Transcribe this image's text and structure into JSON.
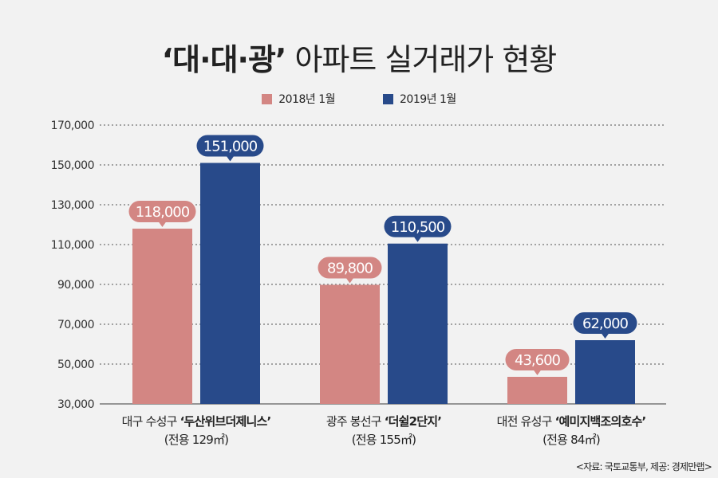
{
  "title": {
    "bold": "‘대·대·광’",
    "rest": " 아파트 실거래가 현황"
  },
  "source": "<자료: 국토교통부, 제공: 경제만랩>",
  "colors": {
    "2018": "#d38683",
    "2019": "#284a8a",
    "background": "#f2f2f2"
  },
  "chart_data": {
    "type": "bar",
    "title": "‘대·대·광’ 아파트 실거래가 현황",
    "categories": [
      {
        "region": "대구 수성구 ",
        "name": "‘두산위브더제니스’",
        "area": "(전용 129㎡)"
      },
      {
        "region": "광주 봉선구 ",
        "name": "‘더쉴2단지’",
        "area": "(전용 155㎡)"
      },
      {
        "region": "대전 유성구 ",
        "name": "‘예미지백조의호수’",
        "area": "(전용 84㎡)"
      }
    ],
    "series": [
      {
        "name": "2018년 1월",
        "color": "#d38683",
        "values": [
          118000,
          89800,
          43600
        ],
        "labels": [
          "118,000",
          "89,800",
          "43,600"
        ]
      },
      {
        "name": "2019년 1월",
        "color": "#284a8a",
        "values": [
          151000,
          110500,
          62000
        ],
        "labels": [
          "151,000",
          "110,500",
          "62,000"
        ]
      }
    ],
    "ylim": [
      30000,
      170000
    ],
    "yticks": [
      "170,000",
      "150,000",
      "130,000",
      "110,000",
      "90,000",
      "70,000",
      "50,000",
      "30,000"
    ],
    "ytick_values": [
      170000,
      150000,
      130000,
      110000,
      90000,
      70000,
      50000,
      30000
    ],
    "grid": "horizontal dotted",
    "legend": "top-center",
    "xlabel": "",
    "ylabel": ""
  }
}
